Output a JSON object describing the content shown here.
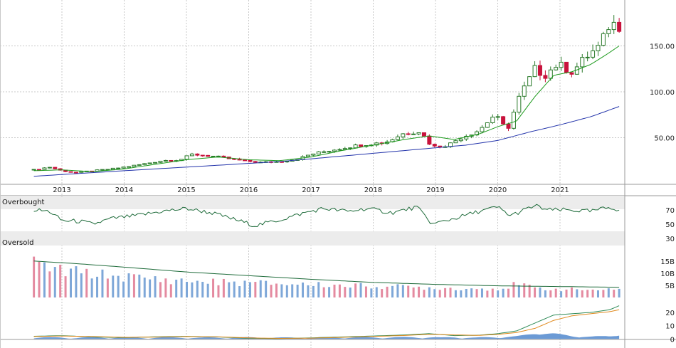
{
  "colors": {
    "up_candle_fill": "#ffffff",
    "up_candle_stroke": "#2a7a2a",
    "down_candle": "#c8123c",
    "sma_short": "#1c9a1c",
    "sma_long": "#2233aa",
    "rsi_line": "#1e6b3a",
    "volume_up": "#7ea7d8",
    "volume_down": "#e48aa0",
    "volume_avg": "#1e6b3a",
    "macd_line": "#2e8b57",
    "macd_signal": "#e08a1e",
    "macd_hist": "#5b8fd0",
    "grid": "#c8c8c8",
    "band": "#ececec"
  },
  "chart_data": [
    {
      "type": "candlestick",
      "panel": "price",
      "x_tick_labels": [
        "2013",
        "2014",
        "2015",
        "2016",
        "2017",
        "2018",
        "2019",
        "2020",
        "2021"
      ],
      "y_ticks": [
        50,
        100,
        150
      ],
      "y_tick_labels": [
        "50.00",
        "100.00",
        "150.00"
      ],
      "ylim": [
        0,
        200
      ],
      "x_start": 2012.55,
      "x_end": 2021.95,
      "close_keyframes": [
        [
          2012.55,
          15
        ],
        [
          2012.8,
          18
        ],
        [
          2013.0,
          14
        ],
        [
          2013.2,
          12
        ],
        [
          2013.5,
          14
        ],
        [
          2013.8,
          16
        ],
        [
          2014.2,
          20
        ],
        [
          2014.6,
          25
        ],
        [
          2014.9,
          26
        ],
        [
          2015.1,
          32
        ],
        [
          2015.4,
          30
        ],
        [
          2015.6,
          28
        ],
        [
          2015.9,
          25
        ],
        [
          2016.2,
          23
        ],
        [
          2016.5,
          24
        ],
        [
          2016.8,
          27
        ],
        [
          2017.0,
          32
        ],
        [
          2017.3,
          36
        ],
        [
          2017.6,
          40
        ],
        [
          2017.9,
          43
        ],
        [
          2018.2,
          45
        ],
        [
          2018.5,
          55
        ],
        [
          2018.75,
          57
        ],
        [
          2018.95,
          40
        ],
        [
          2019.2,
          42
        ],
        [
          2019.4,
          50
        ],
        [
          2019.7,
          58
        ],
        [
          2019.95,
          75
        ],
        [
          2020.15,
          58
        ],
        [
          2020.35,
          95
        ],
        [
          2020.6,
          125
        ],
        [
          2020.75,
          118
        ],
        [
          2020.95,
          130
        ],
        [
          2021.2,
          122
        ],
        [
          2021.45,
          140
        ],
        [
          2021.65,
          150
        ],
        [
          2021.8,
          175
        ],
        [
          2021.95,
          172
        ]
      ],
      "sma_short_keyframes": [
        [
          2012.55,
          14
        ],
        [
          2013.0,
          15
        ],
        [
          2013.5,
          13
        ],
        [
          2014.0,
          16
        ],
        [
          2014.5,
          21
        ],
        [
          2015.0,
          26
        ],
        [
          2015.5,
          29
        ],
        [
          2016.0,
          26
        ],
        [
          2016.5,
          25
        ],
        [
          2017.0,
          29
        ],
        [
          2017.5,
          36
        ],
        [
          2018.0,
          42
        ],
        [
          2018.5,
          48
        ],
        [
          2018.9,
          52
        ],
        [
          2019.3,
          48
        ],
        [
          2019.7,
          54
        ],
        [
          2020.0,
          62
        ],
        [
          2020.3,
          68
        ],
        [
          2020.6,
          95
        ],
        [
          2020.9,
          118
        ],
        [
          2021.2,
          122
        ],
        [
          2021.5,
          130
        ],
        [
          2021.8,
          143
        ],
        [
          2021.95,
          150
        ]
      ],
      "sma_long_keyframes": [
        [
          2012.55,
          8
        ],
        [
          2013.5,
          12
        ],
        [
          2014.5,
          16
        ],
        [
          2015.5,
          20
        ],
        [
          2016.5,
          24
        ],
        [
          2017.5,
          30
        ],
        [
          2018.5,
          36
        ],
        [
          2019.5,
          42
        ],
        [
          2020.0,
          47
        ],
        [
          2020.5,
          56
        ],
        [
          2021.0,
          64
        ],
        [
          2021.5,
          73
        ],
        [
          2021.95,
          84
        ]
      ]
    },
    {
      "type": "line",
      "panel": "rsi",
      "band_labels": [
        "Overbought",
        "Oversold"
      ],
      "y_ticks": [
        30,
        50,
        70
      ],
      "y_tick_labels": [
        "30",
        "50",
        "70"
      ],
      "ylim": [
        20,
        90
      ],
      "keyframes": [
        [
          2012.55,
          70
        ],
        [
          2012.8,
          68
        ],
        [
          2013.0,
          55
        ],
        [
          2013.3,
          54
        ],
        [
          2013.5,
          50
        ],
        [
          2013.8,
          58
        ],
        [
          2014.2,
          62
        ],
        [
          2014.6,
          68
        ],
        [
          2015.0,
          72
        ],
        [
          2015.4,
          66
        ],
        [
          2015.8,
          56
        ],
        [
          2016.1,
          48
        ],
        [
          2016.5,
          56
        ],
        [
          2016.9,
          66
        ],
        [
          2017.2,
          72
        ],
        [
          2017.6,
          68
        ],
        [
          2017.9,
          72
        ],
        [
          2018.3,
          66
        ],
        [
          2018.7,
          74
        ],
        [
          2018.95,
          50
        ],
        [
          2019.3,
          58
        ],
        [
          2019.7,
          68
        ],
        [
          2020.0,
          74
        ],
        [
          2020.2,
          62
        ],
        [
          2020.6,
          76
        ],
        [
          2020.8,
          70
        ],
        [
          2021.1,
          70
        ],
        [
          2021.5,
          68
        ],
        [
          2021.8,
          74
        ],
        [
          2021.95,
          70
        ]
      ]
    },
    {
      "type": "bar",
      "panel": "volume",
      "y_ticks": [
        5,
        10,
        15
      ],
      "y_tick_labels": [
        "5B",
        "10B",
        "15B"
      ],
      "ylim": [
        0,
        17
      ],
      "value_keyframes": [
        [
          2012.55,
          14
        ],
        [
          2012.8,
          12
        ],
        [
          2013.0,
          11
        ],
        [
          2013.4,
          10
        ],
        [
          2013.8,
          9
        ],
        [
          2014.3,
          8
        ],
        [
          2014.8,
          7
        ],
        [
          2015.3,
          6.5
        ],
        [
          2016.0,
          6
        ],
        [
          2016.8,
          5.5
        ],
        [
          2017.5,
          5
        ],
        [
          2018.3,
          4.5
        ],
        [
          2019.0,
          4
        ],
        [
          2019.5,
          3.6
        ],
        [
          2020.1,
          3.8
        ],
        [
          2020.3,
          5.5
        ],
        [
          2020.6,
          3.8
        ],
        [
          2021.0,
          3.4
        ],
        [
          2021.5,
          3.2
        ],
        [
          2021.95,
          3.0
        ]
      ],
      "avg_keyframes": [
        [
          2012.55,
          15
        ],
        [
          2013.2,
          14
        ],
        [
          2014.0,
          12.5
        ],
        [
          2015.0,
          10.5
        ],
        [
          2016.0,
          9
        ],
        [
          2017.0,
          7.5
        ],
        [
          2018.0,
          6.2
        ],
        [
          2019.0,
          5.4
        ],
        [
          2020.0,
          4.8
        ],
        [
          2021.0,
          4.5
        ],
        [
          2021.95,
          4.2
        ]
      ]
    },
    {
      "type": "line",
      "panel": "macd",
      "y_ticks": [
        0,
        10,
        20
      ],
      "y_tick_labels": [
        "0",
        "10",
        "20"
      ],
      "ylim": [
        -2,
        28
      ],
      "macd_keyframes": [
        [
          2012.55,
          2
        ],
        [
          2013.0,
          2.5
        ],
        [
          2013.5,
          1.5
        ],
        [
          2014.0,
          1
        ],
        [
          2014.5,
          1.6
        ],
        [
          2015.0,
          2
        ],
        [
          2015.5,
          1.5
        ],
        [
          2016.0,
          0.5
        ],
        [
          2016.5,
          0.3
        ],
        [
          2017.0,
          0.8
        ],
        [
          2017.5,
          1.5
        ],
        [
          2018.0,
          2.2
        ],
        [
          2018.5,
          3
        ],
        [
          2018.9,
          4
        ],
        [
          2019.3,
          2.5
        ],
        [
          2019.7,
          2.8
        ],
        [
          2020.0,
          4
        ],
        [
          2020.3,
          6
        ],
        [
          2020.6,
          12
        ],
        [
          2020.9,
          18
        ],
        [
          2021.2,
          19
        ],
        [
          2021.5,
          20
        ],
        [
          2021.8,
          22
        ],
        [
          2021.95,
          25
        ]
      ],
      "signal_keyframes": [
        [
          2012.55,
          1.8
        ],
        [
          2013.0,
          2.2
        ],
        [
          2013.5,
          1.8
        ],
        [
          2014.0,
          1.2
        ],
        [
          2014.5,
          1.4
        ],
        [
          2015.0,
          1.8
        ],
        [
          2015.5,
          1.6
        ],
        [
          2016.0,
          0.8
        ],
        [
          2016.5,
          0.4
        ],
        [
          2017.0,
          0.6
        ],
        [
          2017.5,
          1.2
        ],
        [
          2018.0,
          1.9
        ],
        [
          2018.5,
          2.6
        ],
        [
          2018.9,
          3.5
        ],
        [
          2019.3,
          3
        ],
        [
          2019.7,
          2.7
        ],
        [
          2020.0,
          3.4
        ],
        [
          2020.3,
          4.8
        ],
        [
          2020.6,
          8
        ],
        [
          2020.9,
          14
        ],
        [
          2021.2,
          17.5
        ],
        [
          2021.5,
          19
        ],
        [
          2021.8,
          20.5
        ],
        [
          2021.95,
          22
        ]
      ]
    }
  ]
}
